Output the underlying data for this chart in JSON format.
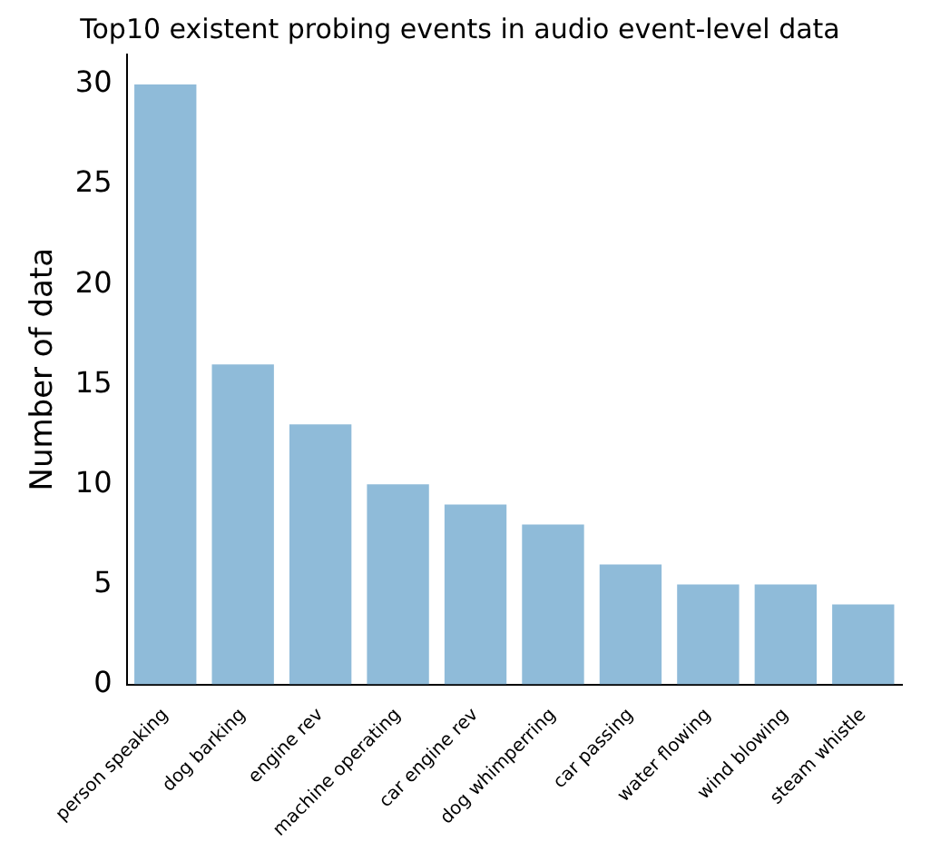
{
  "chart_data": {
    "type": "bar",
    "title": "Top10 existent probing events in audio event-level data",
    "ylabel": "Number of data",
    "categories": [
      "person speaking",
      "dog barking",
      "engine rev",
      "machine operating",
      "car engine rev",
      "dog whimperring",
      "car passing",
      "water flowing",
      "wind blowing",
      "steam whistle"
    ],
    "values": [
      30,
      16,
      13,
      10,
      9,
      8,
      6,
      5,
      5,
      4
    ],
    "color": "#8fbbd9",
    "ylim": [
      0,
      31.5
    ],
    "yticks": [
      0,
      5,
      10,
      15,
      20,
      25,
      30
    ],
    "grid": false,
    "legend": false
  }
}
